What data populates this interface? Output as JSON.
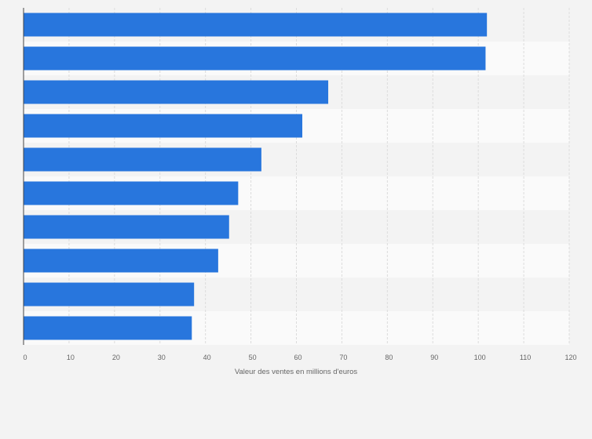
{
  "chart_data": {
    "type": "bar",
    "orientation": "horizontal",
    "title": "",
    "xlabel": "Valeur des ventes en millions d'euros",
    "ylabel": "",
    "categories": [
      "",
      "",
      "",
      "",
      "",
      "",
      "",
      "",
      "",
      ""
    ],
    "values": [
      101.9,
      101.6,
      67.0,
      61.3,
      52.3,
      47.2,
      45.2,
      42.8,
      37.5,
      37.0
    ],
    "xlim": [
      0,
      120
    ],
    "xticks": [
      0,
      10,
      20,
      30,
      40,
      50,
      60,
      70,
      80,
      90,
      100,
      110,
      120
    ],
    "grid": true,
    "bar_color": "#2876dd"
  }
}
